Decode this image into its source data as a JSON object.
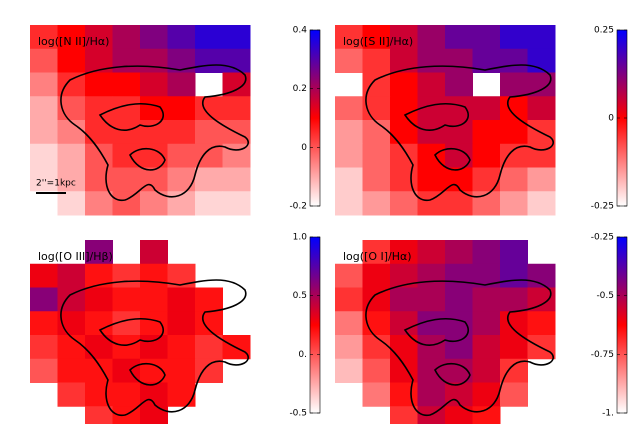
{
  "chart_data": [
    {
      "type": "heatmap",
      "title": "log([N II]/Hα)",
      "scale_label": "2''=1kpc",
      "clim": [
        -0.2,
        0.4
      ],
      "cticks": [
        -0.2,
        0,
        0.2,
        0.4
      ],
      "colormap": [
        "#ffffff",
        "#ff0000",
        "#0000ff"
      ],
      "values": [
        [
          0.05,
          0.1,
          0.15,
          0.2,
          0.25,
          0.3,
          0.35,
          0.35
        ],
        [
          0,
          0.1,
          0.15,
          0.2,
          0.2,
          0.25,
          0.3,
          0.3
        ],
        [
          -0.05,
          0.05,
          0.1,
          0.1,
          0.15,
          0.2,
          null,
          0.15
        ],
        [
          -0.1,
          0,
          0.05,
          0.05,
          0.1,
          0.1,
          0.05,
          0.05
        ],
        [
          -0.1,
          -0.05,
          0.05,
          0.05,
          0.05,
          0.05,
          0,
          0
        ],
        [
          -0.15,
          -0.1,
          0,
          0.05,
          0.05,
          0,
          0,
          -0.05
        ],
        [
          -0.15,
          -0.1,
          0,
          0,
          0,
          -0.05,
          -0.1,
          -0.1
        ],
        [
          -0.2,
          -0.15,
          -0.05,
          0,
          -0.05,
          -0.1,
          -0.15,
          -0.15
        ]
      ]
    },
    {
      "type": "heatmap",
      "title": "log([S II]/Hα)",
      "clim": [
        -0.25,
        0.25
      ],
      "cticks": [
        -0.25,
        0,
        0.25
      ],
      "colormap": [
        "#ffffff",
        "#ff0000",
        "#0000ff"
      ],
      "values": [
        [
          -0.05,
          0,
          0.05,
          0.1,
          0.15,
          0.15,
          0.2,
          0.2
        ],
        [
          -0.1,
          -0.05,
          0.05,
          0.1,
          0.1,
          0.15,
          0.15,
          0.2
        ],
        [
          null,
          -0.05,
          0,
          0.05,
          0.1,
          null,
          0.1,
          0.1
        ],
        [
          -0.1,
          -0.05,
          0,
          0.05,
          0.05,
          0.05,
          0,
          0.05
        ],
        [
          -0.15,
          -0.1,
          0,
          0.05,
          0.05,
          0,
          0,
          -0.05
        ],
        [
          -0.15,
          -0.1,
          -0.05,
          0,
          0.05,
          0,
          -0.05,
          -0.05
        ],
        [
          -0.2,
          -0.1,
          -0.05,
          0,
          0,
          -0.05,
          -0.1,
          -0.15
        ],
        [
          -0.2,
          -0.15,
          -0.1,
          -0.05,
          -0.05,
          -0.1,
          -0.15,
          -0.2
        ]
      ]
    },
    {
      "type": "heatmap",
      "title": "log([O III]/Hβ)",
      "clim": [
        -0.5,
        1.0
      ],
      "cticks": [
        -0.5,
        {
          "value": 0,
          "label": "0."
        },
        0.5,
        {
          "value": 1.0,
          "label": "1.0"
        }
      ],
      "colormap": [
        "#ffffff",
        "#ff0000",
        "#0000ff"
      ],
      "values": [
        [
          null,
          null,
          0.6,
          null,
          0.4,
          null,
          null,
          null
        ],
        [
          0.3,
          0.4,
          0.2,
          0.1,
          0.2,
          0.1,
          null,
          null
        ],
        [
          0.6,
          0.4,
          0.3,
          0.2,
          0.2,
          0.3,
          0.2,
          null
        ],
        [
          0.2,
          0.3,
          0.2,
          0.1,
          0.2,
          0.3,
          0.2,
          null
        ],
        [
          0.1,
          0.2,
          0.3,
          0.2,
          0.3,
          0.2,
          0.1,
          0.2
        ],
        [
          0,
          0.2,
          0.2,
          0.3,
          0.2,
          0.2,
          0.1,
          null
        ],
        [
          null,
          0.1,
          0.2,
          0.2,
          0.3,
          0.2,
          null,
          null
        ],
        [
          null,
          null,
          0.1,
          0.2,
          0.3,
          null,
          null,
          null
        ]
      ]
    },
    {
      "type": "heatmap",
      "title": "log([O I]/Hα)",
      "clim": [
        -1,
        -0.25
      ],
      "cticks": [
        {
          "value": -1,
          "label": "-1."
        },
        -0.75,
        -0.5,
        -0.25
      ],
      "colormap": [
        "#ffffff",
        "#ff0000",
        "#0000ff"
      ],
      "values": [
        [
          null,
          -0.7,
          -0.6,
          -0.55,
          -0.5,
          -0.45,
          -0.4,
          null
        ],
        [
          -0.75,
          -0.6,
          -0.55,
          -0.5,
          -0.45,
          -0.45,
          -0.4,
          -0.45
        ],
        [
          -0.7,
          -0.6,
          -0.5,
          -0.5,
          -0.45,
          -0.5,
          -0.5,
          -0.55
        ],
        [
          -0.8,
          -0.65,
          -0.55,
          -0.45,
          -0.45,
          -0.5,
          -0.6,
          -0.65
        ],
        [
          -0.85,
          -0.7,
          -0.6,
          -0.5,
          -0.45,
          -0.55,
          -0.6,
          -0.7
        ],
        [
          -0.9,
          -0.75,
          -0.6,
          -0.5,
          -0.5,
          -0.55,
          -0.7,
          null
        ],
        [
          null,
          -0.8,
          -0.65,
          -0.5,
          -0.55,
          -0.6,
          -0.75,
          null
        ],
        [
          null,
          null,
          -0.7,
          -0.55,
          -0.6,
          -0.65,
          null,
          null
        ]
      ]
    }
  ]
}
